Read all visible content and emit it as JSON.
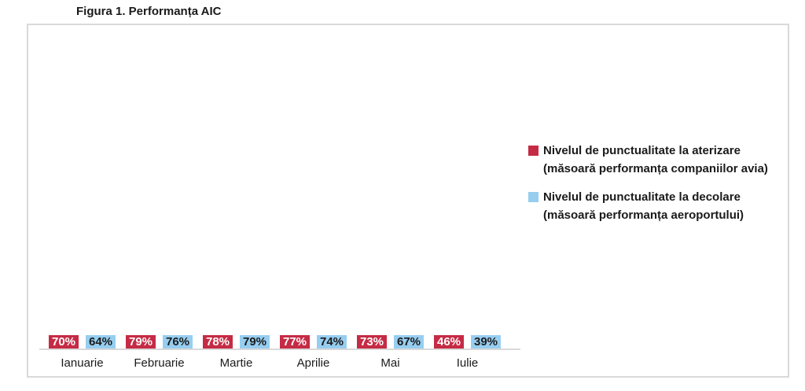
{
  "title": "Figura 1. Performanța AIC",
  "colors": {
    "series_aterizare": "#C52B45",
    "series_decolare": "#97CEF0",
    "frame_border": "#D9D9D9",
    "label_on_red": "#FFFFFF",
    "label_on_blue": "#1A1A1A",
    "text": "#1A1A1A"
  },
  "legend": {
    "position": "right",
    "items": [
      {
        "label": "Nivelul de punctualitate la aterizare (măsoară performanța companiilor avia)",
        "color": "#C52B45"
      },
      {
        "label": "Nivelul de punctualitate la decolare (măsoară performanța aeroportului)",
        "color": "#97CEF0"
      }
    ]
  },
  "chart_data": {
    "type": "bar",
    "title": "Figura 1. Performanța AIC",
    "categories": [
      "Ianuarie",
      "Februarie",
      "Martie",
      "Aprilie",
      "Mai",
      "Iulie"
    ],
    "series": [
      {
        "name": "Nivelul de punctualitate la aterizare (măsoară performanța companiilor avia)",
        "color": "#C52B45",
        "label_color": "#FFFFFF",
        "values": [
          70,
          79,
          78,
          77,
          73,
          46
        ],
        "labels": [
          "70%",
          "79%",
          "78%",
          "77%",
          "73%",
          "46%"
        ]
      },
      {
        "name": "Nivelul de punctualitate la decolare (măsoară performanța aeroportului)",
        "color": "#97CEF0",
        "label_color": "#1A1A1A",
        "values": [
          64,
          76,
          79,
          74,
          67,
          39
        ],
        "labels": [
          "64%",
          "76%",
          "79%",
          "74%",
          "67%",
          "39%"
        ]
      }
    ],
    "xlabel": "",
    "ylabel": "",
    "ylim": [
      0,
      103
    ],
    "grid": false,
    "y_axis_visible": false,
    "legend_position": "right",
    "data_labels": "percent labels centered inside bars"
  }
}
